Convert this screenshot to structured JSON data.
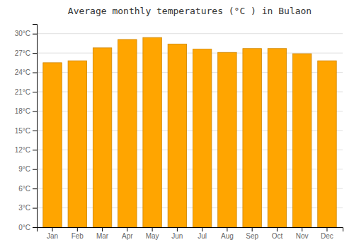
{
  "chart_data": {
    "type": "bar",
    "title": "Average monthly temperatures (°C ) in Bulaon",
    "categories": [
      "Jan",
      "Feb",
      "Mar",
      "Apr",
      "May",
      "Jun",
      "Jul",
      "Aug",
      "Sep",
      "Oct",
      "Nov",
      "Dec"
    ],
    "values": [
      25.5,
      25.8,
      27.8,
      29.1,
      29.4,
      28.4,
      27.6,
      27.1,
      27.7,
      27.7,
      26.9,
      25.8
    ],
    "color": "#FFA500",
    "ylim": [
      0,
      31.5
    ],
    "yticks": [
      {
        "value": 0,
        "label": "0°C"
      },
      {
        "value": 3,
        "label": "3°C"
      },
      {
        "value": 6,
        "label": "6°C"
      },
      {
        "value": 9,
        "label": "9°C"
      },
      {
        "value": 12,
        "label": "12°C"
      },
      {
        "value": 15,
        "label": "15°C"
      },
      {
        "value": 18,
        "label": "18°C"
      },
      {
        "value": 21,
        "label": "21°C"
      },
      {
        "value": 24,
        "label": "24°C"
      },
      {
        "value": 27,
        "label": "27°C"
      },
      {
        "value": 30,
        "label": "30°C"
      }
    ],
    "grid": true
  }
}
